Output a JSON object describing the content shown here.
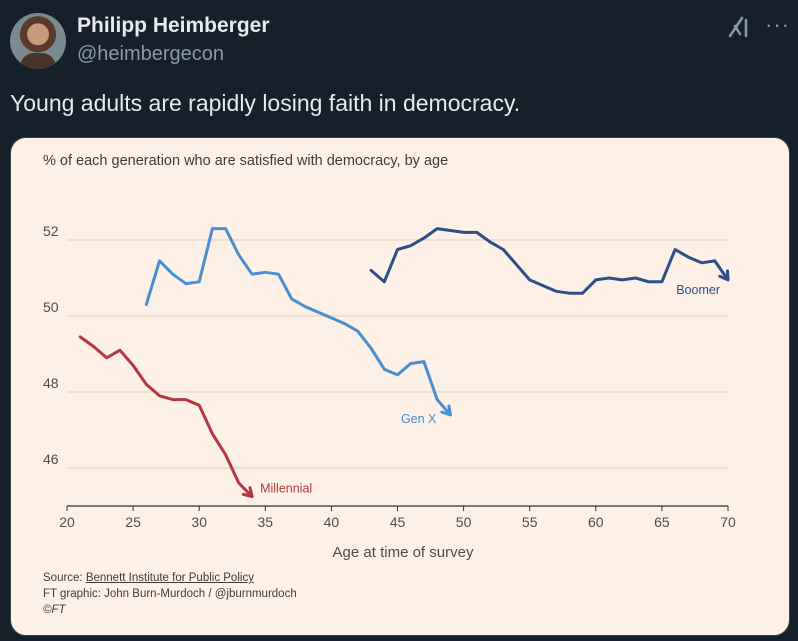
{
  "tweet": {
    "author_name": "Philipp Heimberger",
    "author_handle": "@heimbergecon",
    "text": "Young adults are rapidly losing faith in democracy.",
    "icons": [
      "grok-icon",
      "more-icon"
    ],
    "more_glyph": "···"
  },
  "chart_data": {
    "type": "line",
    "title": "% of each generation who are satisfied with democracy, by age",
    "xlabel": "Age at time of survey",
    "ylabel": "",
    "xlim": [
      20,
      70
    ],
    "ylim": [
      45,
      53
    ],
    "x_ticks": [
      20,
      25,
      30,
      35,
      40,
      45,
      50,
      55,
      60,
      65,
      70
    ],
    "y_ticks": [
      46,
      48,
      50,
      52
    ],
    "grid": "horizontal",
    "series": [
      {
        "name": "Millennial",
        "color": "#b5373f",
        "points": [
          [
            21,
            49.45
          ],
          [
            22,
            49.2
          ],
          [
            23,
            48.9
          ],
          [
            24,
            49.1
          ],
          [
            25,
            48.7
          ],
          [
            26,
            48.2
          ],
          [
            27,
            47.9
          ],
          [
            28,
            47.8
          ],
          [
            29,
            47.8
          ],
          [
            30,
            47.65
          ],
          [
            31,
            46.9
          ],
          [
            32,
            46.35
          ],
          [
            33,
            45.6
          ],
          [
            34,
            45.25
          ]
        ]
      },
      {
        "name": "Gen X",
        "color": "#4a8fd0",
        "points": [
          [
            26,
            50.3
          ],
          [
            27,
            51.45
          ],
          [
            28,
            51.1
          ],
          [
            29,
            50.85
          ],
          [
            30,
            50.9
          ],
          [
            31,
            52.3
          ],
          [
            32,
            52.3
          ],
          [
            33,
            51.6
          ],
          [
            34,
            51.1
          ],
          [
            35,
            51.15
          ],
          [
            36,
            51.1
          ],
          [
            37,
            50.45
          ],
          [
            38,
            50.25
          ],
          [
            39,
            50.1
          ],
          [
            40,
            49.95
          ],
          [
            41,
            49.8
          ],
          [
            42,
            49.6
          ],
          [
            43,
            49.15
          ],
          [
            44,
            48.6
          ],
          [
            45,
            48.45
          ],
          [
            46,
            48.75
          ],
          [
            47,
            48.8
          ],
          [
            48,
            47.8
          ],
          [
            49,
            47.4
          ]
        ]
      },
      {
        "name": "Boomer",
        "color": "#2c4f88",
        "points": [
          [
            43,
            51.2
          ],
          [
            44,
            50.9
          ],
          [
            45,
            51.75
          ],
          [
            46,
            51.85
          ],
          [
            47,
            52.05
          ],
          [
            48,
            52.3
          ],
          [
            49,
            52.25
          ],
          [
            50,
            52.2
          ],
          [
            51,
            52.2
          ],
          [
            52,
            51.95
          ],
          [
            53,
            51.75
          ],
          [
            54,
            51.35
          ],
          [
            55,
            50.95
          ],
          [
            56,
            50.8
          ],
          [
            57,
            50.65
          ],
          [
            58,
            50.6
          ],
          [
            59,
            50.6
          ],
          [
            60,
            50.95
          ],
          [
            61,
            51.0
          ],
          [
            62,
            50.95
          ],
          [
            63,
            51.0
          ],
          [
            64,
            50.9
          ],
          [
            65,
            50.9
          ],
          [
            66,
            51.75
          ],
          [
            67,
            51.55
          ],
          [
            68,
            51.4
          ],
          [
            69,
            51.45
          ],
          [
            70,
            50.95
          ]
        ]
      }
    ],
    "source": {
      "prefix": "Source: ",
      "name": "Bennett Institute for Public Policy",
      "credit": "FT graphic: John Burn-Murdoch / @jburnmurdoch",
      "copyright": "©FT"
    }
  }
}
